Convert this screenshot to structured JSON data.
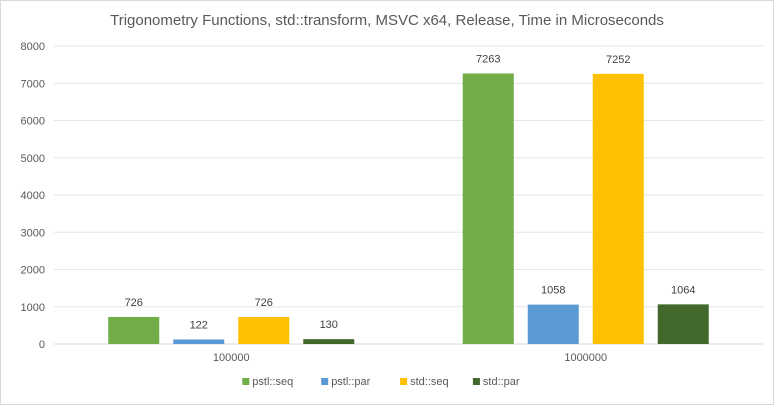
{
  "chart_data": {
    "type": "bar",
    "title": "Trigonometry  Functions, std::transform, MSVC x64, Release, Time in Microseconds",
    "xlabel": "",
    "ylabel": "",
    "categories": [
      "100000",
      "1000000"
    ],
    "series": [
      {
        "name": "pstl::seq",
        "color": "#70ad47",
        "values": [
          726,
          7263
        ]
      },
      {
        "name": "pstl::par",
        "color": "#5b9bd5",
        "values": [
          122,
          1058
        ]
      },
      {
        "name": "std::seq",
        "color": "#ffc000",
        "values": [
          726,
          7252
        ]
      },
      {
        "name": "std::par",
        "color": "#43682b",
        "values": [
          130,
          1064
        ]
      }
    ],
    "ylim": [
      0,
      8000
    ],
    "yticks": [
      0,
      1000,
      2000,
      3000,
      4000,
      5000,
      6000,
      7000,
      8000
    ],
    "grid": true,
    "legend": "bottom",
    "data_labels": true
  }
}
